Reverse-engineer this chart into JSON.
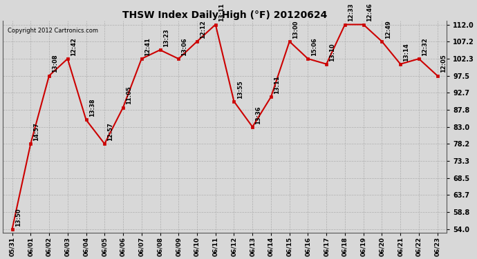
{
  "title": "THSW Index Daily High (°F) 20120624",
  "copyright": "Copyright 2012 Cartronics.com",
  "x_labels": [
    "05/31",
    "06/01",
    "06/02",
    "06/03",
    "06/04",
    "06/05",
    "06/06",
    "06/07",
    "06/08",
    "06/09",
    "06/10",
    "06/11",
    "06/12",
    "06/13",
    "06/14",
    "06/15",
    "06/16",
    "06/17",
    "06/18",
    "06/19",
    "06/20",
    "06/21",
    "06/22",
    "06/23"
  ],
  "y_values": [
    54.0,
    78.2,
    97.5,
    102.3,
    85.0,
    78.2,
    88.5,
    102.3,
    104.8,
    102.3,
    107.2,
    112.0,
    90.2,
    83.0,
    91.5,
    107.2,
    102.3,
    100.8,
    112.0,
    112.0,
    107.2,
    100.8,
    102.3,
    97.5
  ],
  "point_labels": [
    "13:50",
    "14:57",
    "13:08",
    "12:42",
    "13:38",
    "12:57",
    "11:05",
    "12:41",
    "13:23",
    "13:06",
    "12:12",
    "13:11",
    "13:55",
    "13:36",
    "13:11",
    "13:00",
    "15:06",
    "13:10",
    "12:33",
    "12:46",
    "12:49",
    "13:14",
    "12:32",
    "12:05"
  ],
  "line_color": "#cc0000",
  "marker_color": "#cc0000",
  "bg_color": "#d8d8d8",
  "plot_bg_color": "#d8d8d8",
  "grid_color": "#aaaaaa",
  "y_min": 54.0,
  "y_max": 112.0,
  "y_ticks": [
    54.0,
    58.8,
    63.7,
    68.5,
    73.3,
    78.2,
    83.0,
    87.8,
    92.7,
    97.5,
    102.3,
    107.2,
    112.0
  ]
}
